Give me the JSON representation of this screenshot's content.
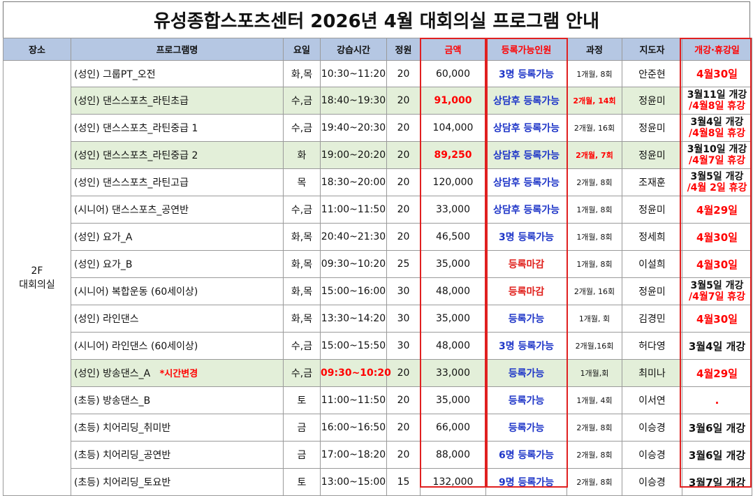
{
  "title": "유성종합스포츠센터 2026년 4월 대회의실 프로그램 안내",
  "colors": {
    "header_bg": "#b5c7e3",
    "highlight_row": "#e3efd9",
    "red": "#ff0000",
    "blue": "#1f36c8"
  },
  "headers": {
    "place": "장소",
    "program": "프로그램명",
    "day": "요일",
    "time": "강습시간",
    "capacity": "정원",
    "price": "금액",
    "available": "등록가능인원",
    "course": "과정",
    "instructor": "지도자",
    "open_close": "개강·휴강일"
  },
  "place": {
    "line1": "2F",
    "line2": "대회의실"
  },
  "rows": [
    {
      "name": "(성인) 그룹PT_오전",
      "day": "화,목",
      "time": "10:30~11:20",
      "cap": "20",
      "price": "60,000",
      "avail": "3명 등록가능",
      "course": "1개월, 8회",
      "inst": "안준현",
      "vac1": "4월30일",
      "vac2": ""
    },
    {
      "name": "(성인) 댄스스포츠_라틴초급",
      "day": "수,금",
      "time": "18:40~19:30",
      "cap": "20",
      "price": "91,000",
      "avail": "상담후 등록가능",
      "course": "2개월, 14회",
      "inst": "정윤미",
      "vac1": "3월11일 개강",
      "vac2": "/4월8일 휴강"
    },
    {
      "name": "(성인) 댄스스포츠_라틴중급 1",
      "day": "수,금",
      "time": "19:40~20:30",
      "cap": "20",
      "price": "104,000",
      "avail": "상담후 등록가능",
      "course": "2개월, 16회",
      "inst": "정윤미",
      "vac1": "3월4일 개강",
      "vac2": "/4월8일 휴강"
    },
    {
      "name": "(성인) 댄스스포츠_라틴중급 2",
      "day": "화",
      "time": "19:00~20:20",
      "cap": "20",
      "price": "89,250",
      "avail": "상담후 등록가능",
      "course": "2개월, 7회",
      "inst": "정윤미",
      "vac1": "3월10일 개강",
      "vac2": "/4월7일 휴강"
    },
    {
      "name": "(성인) 댄스스포츠_라틴고급",
      "day": "목",
      "time": "18:30~20:00",
      "cap": "20",
      "price": "120,000",
      "avail": "상담후 등록가능",
      "course": "2개월, 8회",
      "inst": "조재훈",
      "vac1": "3월5일 개강",
      "vac2": "/4월 2일 휴강"
    },
    {
      "name": "(시니어) 댄스스포츠_공연반",
      "day": "수,금",
      "time": "11:00~11:50",
      "cap": "20",
      "price": "33,000",
      "avail": "상담후 등록가능",
      "course": "1개월, 8회",
      "inst": "정윤미",
      "vac1": "4월29일",
      "vac2": ""
    },
    {
      "name": "(성인) 요가_A",
      "day": "화,목",
      "time": "20:40~21:30",
      "cap": "20",
      "price": "46,500",
      "avail": "3명 등록가능",
      "course": "1개월, 8회",
      "inst": "정세희",
      "vac1": "4월30일",
      "vac2": ""
    },
    {
      "name": "(성인) 요가_B",
      "day": "화,목",
      "time": "09:30~10:20",
      "cap": "25",
      "price": "35,000",
      "avail": "등록마감",
      "course": "1개월, 8회",
      "inst": "이설희",
      "vac1": "4월30일",
      "vac2": ""
    },
    {
      "name": "(시니어) 복합운동 (60세이상)",
      "day": "화,목",
      "time": "15:00~16:00",
      "cap": "30",
      "price": "48,000",
      "avail": "등록마감",
      "course": "2개월, 16회",
      "inst": "정윤미",
      "vac1": "3월5일 개강",
      "vac2": "/4월7일 휴강"
    },
    {
      "name": "(성인) 라인댄스",
      "day": "화,목",
      "time": "13:30~14:20",
      "cap": "30",
      "price": "35,000",
      "avail": "등록가능",
      "course": "1개월, 회",
      "inst": "김경민",
      "vac1": "4월30일",
      "vac2": ""
    },
    {
      "name": "(시니어) 라인댄스 (60세이상)",
      "day": "수,금",
      "time": "15:00~15:50",
      "cap": "30",
      "price": "48,000",
      "avail": "3명 등록가능",
      "course": "2개월,16회",
      "inst": "허다영",
      "vac1": "3월4일 개강",
      "vac2": ""
    },
    {
      "name": "(성인) 방송댄스_A",
      "note": "*시간변경",
      "day": "수,금",
      "time": "09:30~10:20",
      "cap": "20",
      "price": "33,000",
      "avail": "등록가능",
      "course": "1개월,회",
      "inst": "최미나",
      "vac1": "4월29일",
      "vac2": ""
    },
    {
      "name": "(초등) 방송댄스_B",
      "day": "토",
      "time": "11:00~11:50",
      "cap": "20",
      "price": "35,000",
      "avail": "등록가능",
      "course": "1개월, 4회",
      "inst": "이서연",
      "vac1": ".",
      "vac2": ""
    },
    {
      "name": "(초등) 치어리딩_취미반",
      "day": "금",
      "time": "16:00~16:50",
      "cap": "20",
      "price": "66,000",
      "avail": "등록가능",
      "course": "2개월, 8회",
      "inst": "이승경",
      "vac1": "3월6일 개강",
      "vac2": ""
    },
    {
      "name": "(초등) 치어리딩_공연반",
      "day": "금",
      "time": "17:00~18:20",
      "cap": "20",
      "price": "88,000",
      "avail": "6명 등록가능",
      "course": "2개월, 8회",
      "inst": "이승경",
      "vac1": "3월6일 개강",
      "vac2": ""
    },
    {
      "name": "(초등) 치어리딩_토요반",
      "day": "토",
      "time": "13:00~15:00",
      "cap": "15",
      "price": "132,000",
      "avail": "9명 등록가능",
      "course": "2개월, 8회",
      "inst": "이승경",
      "vac1": "3월7일 개강",
      "vac2": ""
    }
  ]
}
